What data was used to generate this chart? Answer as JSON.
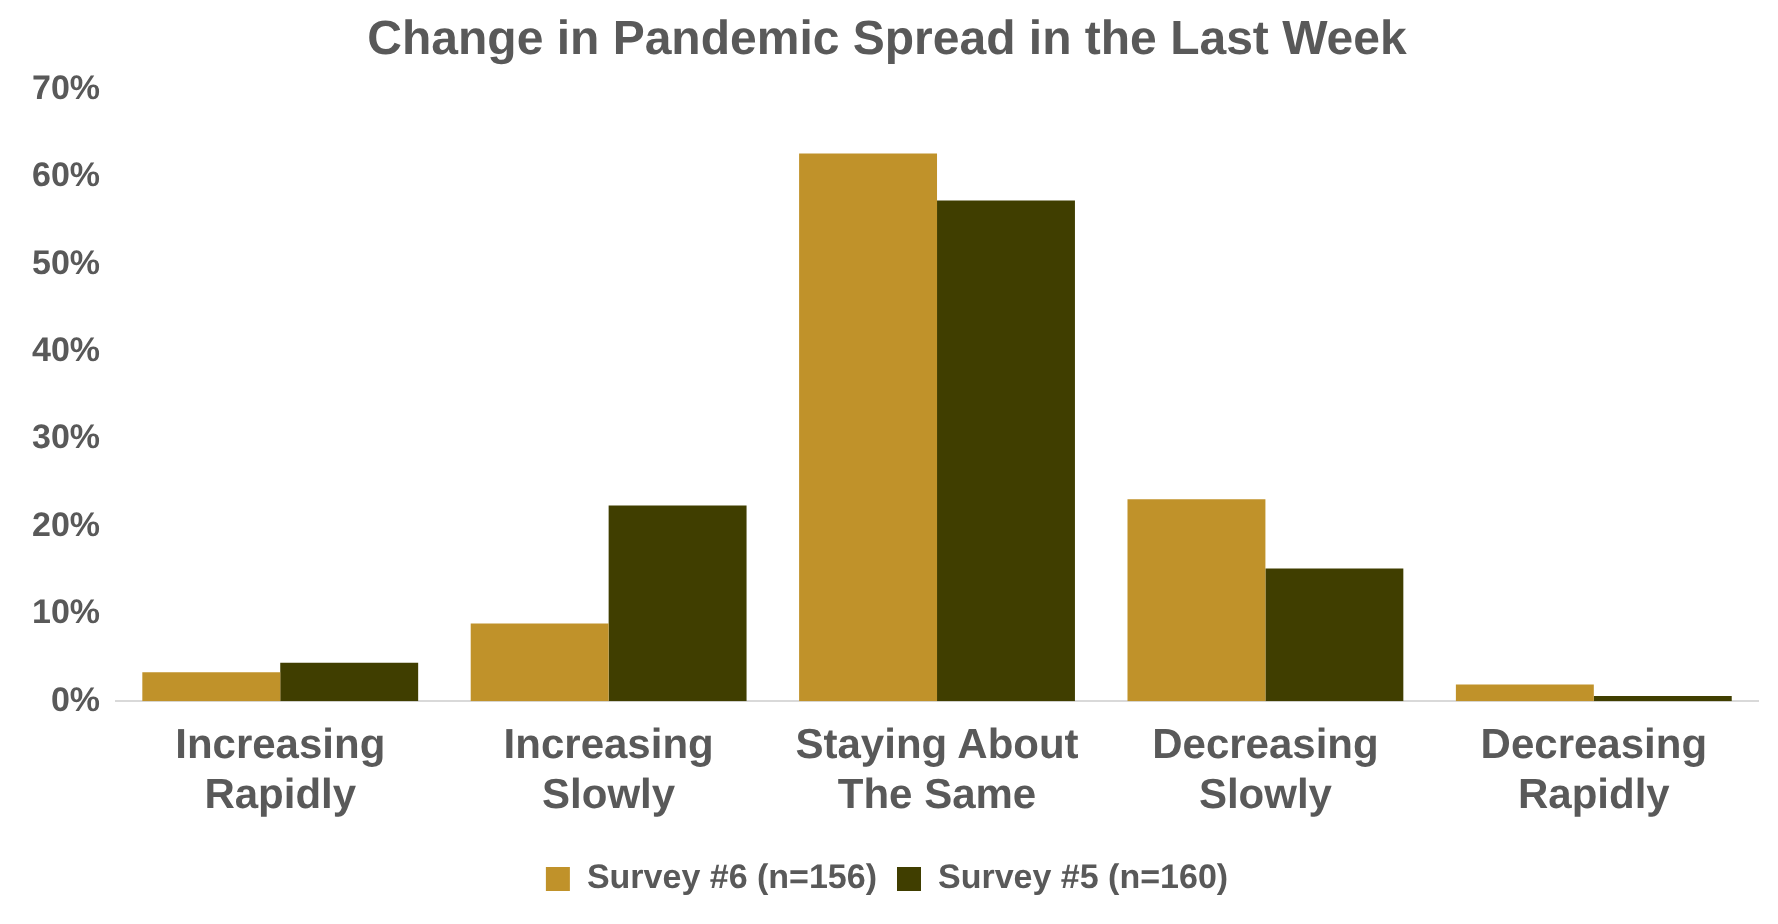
{
  "chart_data": {
    "type": "bar",
    "title": "Change in Pandemic Spread in the Last Week",
    "categories": [
      "Increasing Rapidly",
      "Increasing Slowly",
      "Staying About The Same",
      "Decreasing Slowly",
      "Decreasing Rapidly"
    ],
    "series": [
      {
        "name": "Survey #6 (n=156)",
        "color": "#c0922a",
        "values": [
          3.3,
          8.9,
          62.7,
          23.1,
          1.9
        ]
      },
      {
        "name": "Survey #5 (n=160)",
        "color": "#403e00",
        "values": [
          4.4,
          22.4,
          57.3,
          15.2,
          0.6
        ]
      }
    ],
    "ylim": [
      0,
      70
    ],
    "yticks": [
      {
        "value": 0,
        "label": "0%"
      },
      {
        "value": 10,
        "label": "10%"
      },
      {
        "value": 20,
        "label": "20%"
      },
      {
        "value": 30,
        "label": "30%"
      },
      {
        "value": 40,
        "label": "40%"
      },
      {
        "value": 50,
        "label": "50%"
      },
      {
        "value": 60,
        "label": "60%"
      },
      {
        "value": 70,
        "label": "70%"
      }
    ],
    "grid": false,
    "legend": "bottom"
  }
}
